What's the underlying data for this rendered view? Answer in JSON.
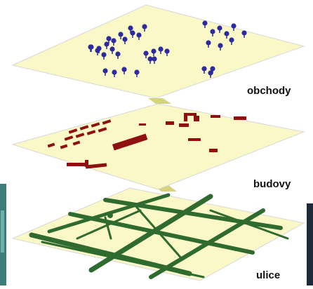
{
  "layers": [
    {
      "id": "shops",
      "label": "obchody",
      "plane_color": "#fbf8c8",
      "mark_color": "#2b2b9e"
    },
    {
      "id": "buildings",
      "label": "budovy",
      "plane_color": "#fbf8c8",
      "mark_color": "#8e1010"
    },
    {
      "id": "streets",
      "label": "ulice",
      "plane_color": "#fbf8c8",
      "mark_color": "#2f6b2f"
    }
  ],
  "connector_color": "#d6d37a",
  "outline_color": "#d8d8d8"
}
